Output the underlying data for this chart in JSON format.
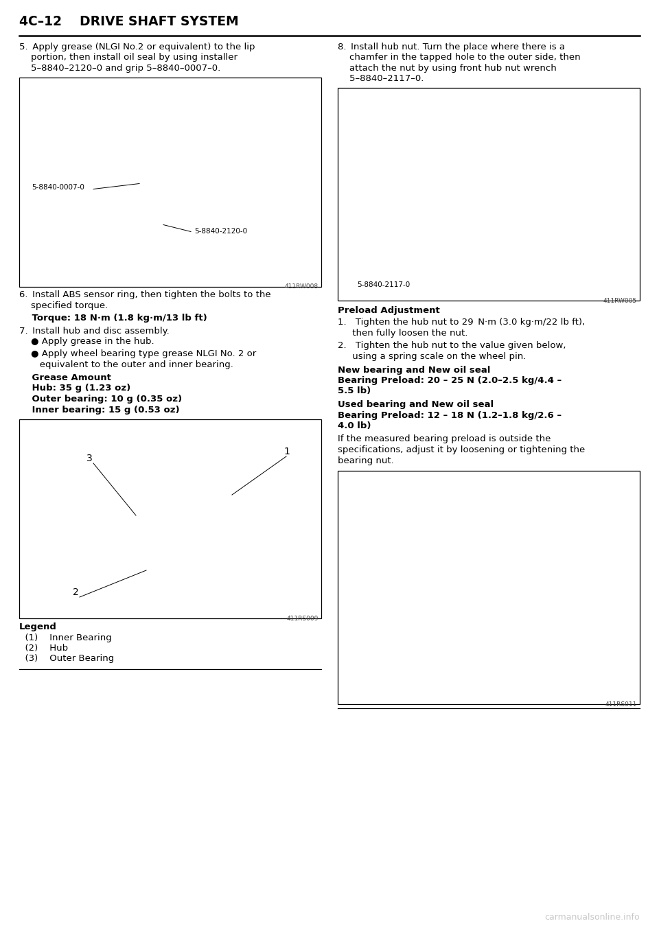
{
  "page_bg": "#ffffff",
  "watermark_text": "carmanualsonline.info",
  "watermark_color": "#c8c8c8",
  "header_text": "4C–12    DRIVE SHAFT SYSTEM",
  "step5_line1": "5. Apply grease (NLGI No.2 or equivalent) to the lip",
  "step5_line2": "    portion, then install oil seal by using installer",
  "step5_line3": "    5–8840–2120–0 and grip 5–8840–0007–0.",
  "img1_label_lt": "5-8840-0007-0",
  "img1_label_rt": "5-8840-2120-0",
  "img1_ref": "411RW008",
  "step6_line1": "6. Install ABS sensor ring, then tighten the bolts to the",
  "step6_line2": "    specified torque.",
  "step6_bold": "    Torque: 18 N·m (1.8 kg·m/13 lb ft)",
  "step7_line1": "7. Install hub and disc assembly.",
  "step7_b1": "    ● Apply grease in the hub.",
  "step7_b2a": "    ● Apply wheel bearing type grease NLGI No. 2 or",
  "step7_b2b": "       equivalent to the outer and inner bearing.",
  "grease_hdr": "    Grease Amount",
  "grease_hub": "    Hub: 35 g (1.23 oz)",
  "grease_outer": "    Outer bearing: 10 g (0.35 oz)",
  "grease_inner": "    Inner bearing: 15 g (0.53 oz)",
  "img2_ref": "411RS009",
  "img2_n1": "1",
  "img2_n2": "2",
  "img2_n3": "3",
  "legend_hdr": "Legend",
  "legend_1": "  (1)    Inner Bearing",
  "legend_2": "  (2)    Hub",
  "legend_3": "  (3)    Outer Bearing",
  "step8_line1": "8. Install hub nut. Turn the place where there is a",
  "step8_line2": "    chamfer in the tapped hole to the outer side, then",
  "step8_line3": "    attach the nut by using front hub nut wrench",
  "step8_line4": "    5–8840–2117–0.",
  "img3_label": "5-8840-2117-0",
  "img3_ref": "411RW005",
  "preload_hdr": "Preload Adjustment",
  "pa1_line1": "1. Tighten the hub nut to 29 N·m (3.0 kg·m/22 lb ft),",
  "pa1_line2": "     then fully loosen the nut.",
  "pa2_line1": "2. Tighten the hub nut to the value given below,",
  "pa2_line2": "     using a spring scale on the wheel pin.",
  "nb_hdr": "New bearing and New oil seal",
  "nb_text1": "Bearing Preload: 20 – 25 N (2.0–2.5 kg/4.4 –",
  "nb_text2": "5.5 lb)",
  "ub_hdr": "Used bearing and New oil seal",
  "ub_text1": "Bearing Preload: 12 – 18 N (1.2–1.8 kg/2.6 –",
  "ub_text2": "4.0 lb)",
  "outside_1": "If the measured bearing preload is outside the",
  "outside_2": "specifications, adjust it by loosening or tightening the",
  "outside_3": "bearing nut.",
  "img4_ref": "411RS011"
}
